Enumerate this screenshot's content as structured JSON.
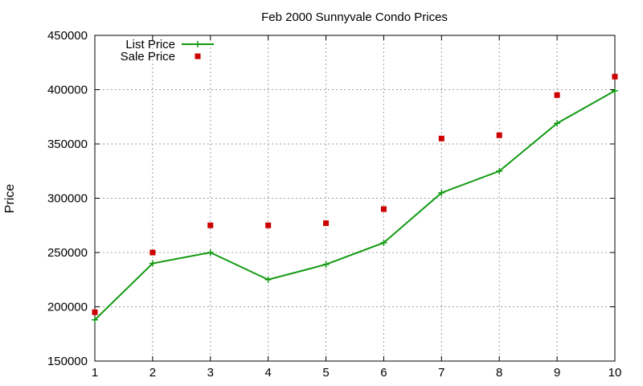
{
  "chart_data": {
    "type": "line",
    "title": "Feb 2000 Sunnyvale Condo Prices",
    "xlabel": "",
    "ylabel": "Price",
    "xlim": [
      1,
      10
    ],
    "ylim": [
      150000,
      450000
    ],
    "x_ticks": [
      "1",
      "2",
      "3",
      "4",
      "5",
      "6",
      "7",
      "8",
      "9",
      "10"
    ],
    "y_ticks": [
      "150000",
      "200000",
      "250000",
      "300000",
      "350000",
      "400000",
      "450000"
    ],
    "grid": true,
    "legend_position": "top-left",
    "x": [
      1,
      2,
      3,
      4,
      5,
      6,
      7,
      8,
      9,
      10
    ],
    "series": [
      {
        "name": "List Price",
        "style": "line-plus",
        "color": "#119a11",
        "values": [
          188000,
          240000,
          250000,
          225000,
          239000,
          259000,
          305000,
          325000,
          369000,
          399000
        ]
      },
      {
        "name": "Sale Price",
        "style": "square-points",
        "color": "#cc0000",
        "values": [
          195000,
          250000,
          275000,
          275000,
          277000,
          290000,
          355000,
          358000,
          395000,
          412000
        ]
      }
    ]
  }
}
